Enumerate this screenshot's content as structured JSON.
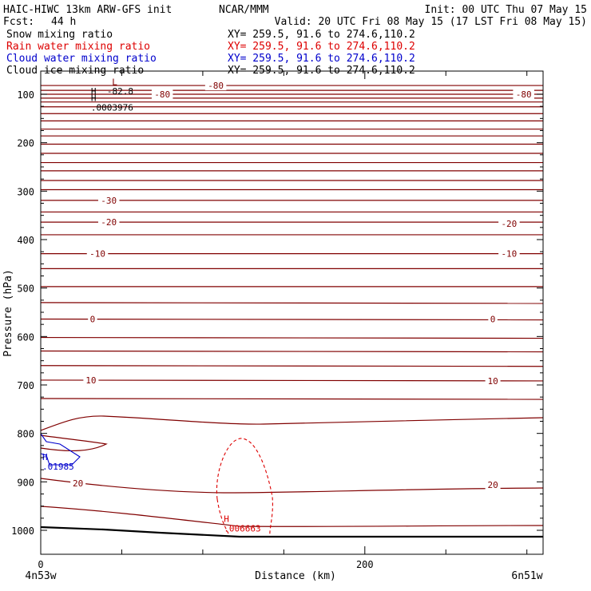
{
  "header": {
    "title_left": "HAIC-HIWC 13km ARW-GFS init",
    "title_center": "NCAR/MMM",
    "init_text": "Init: 00 UTC Thu 07 May 15",
    "fcst_label": "Fcst:",
    "fcst_value": "44 h",
    "valid_text": "Valid: 20 UTC Fri 08 May 15 (17 LST Fri 08 May 15)"
  },
  "fields": [
    {
      "name": "Snow mixing ratio",
      "xy": "XY= 259.5, 91.6 to 274.6,110.2",
      "color": "#000000"
    },
    {
      "name": "Rain water mixing ratio",
      "xy": "XY= 259.5, 91.6 to 274.6,110.2",
      "color": "#dd0000"
    },
    {
      "name": "Cloud water mixing ratio",
      "xy": "XY= 259.5, 91.6 to 274.6,110.2",
      "color": "#0000cc"
    },
    {
      "name": "Cloud ice mixing ratio",
      "xy": "XY= 259.5, 91.6 to 274.6,110.2",
      "color": "#000000"
    }
  ],
  "chart_data": {
    "type": "contour-cross-section",
    "ylabel": "Pressure (hPa)",
    "xlabel": "Distance (km)",
    "x_left_label": "4n53w",
    "x_right_label": "6n51w",
    "xlim": [
      0,
      310
    ],
    "ylim_top": 50,
    "ylim_bottom": 1050,
    "y_ticks": [
      100,
      200,
      300,
      400,
      500,
      600,
      700,
      800,
      900,
      1000
    ],
    "x_ticks": [
      0,
      200
    ],
    "temperature_color": "#800000",
    "temperature_labels": [
      {
        "text": "-80",
        "x": 108,
        "p": 82
      },
      {
        "text": "-80",
        "x": 75,
        "p": 100
      },
      {
        "text": "-80",
        "x": 298,
        "p": 100
      },
      {
        "text": "-30",
        "x": 42,
        "p": 319
      },
      {
        "text": "-20",
        "x": 42,
        "p": 364
      },
      {
        "text": "-20",
        "x": 289,
        "p": 367
      },
      {
        "text": "-10",
        "x": 35,
        "p": 429
      },
      {
        "text": "-10",
        "x": 289,
        "p": 429
      },
      {
        "text": "0",
        "x": 32,
        "p": 564
      },
      {
        "text": "0",
        "x": 279,
        "p": 564
      },
      {
        "text": "10",
        "x": 31,
        "p": 690
      },
      {
        "text": "10",
        "x": 279,
        "p": 692
      },
      {
        "text": "20",
        "x": 23,
        "p": 903
      },
      {
        "text": "20",
        "x": 279,
        "p": 906
      }
    ],
    "extrema": [
      {
        "letter": "L",
        "value": "",
        "x": 44,
        "p": 81,
        "color": "#800000"
      },
      {
        "letter": "H",
        "value": "-82.8",
        "x": 31,
        "p": 100,
        "color": "#000000"
      },
      {
        "letter": "H",
        "value": ".0003976",
        "x": 31,
        "p": 114,
        "color": "#000000"
      },
      {
        "letter": "H",
        "value": ".01985",
        "x": 1,
        "p": 855,
        "color": "#0000cc"
      },
      {
        "letter": "H",
        "value": ".006663",
        "x": 113,
        "p": 983,
        "color": "#dd0000"
      }
    ]
  }
}
